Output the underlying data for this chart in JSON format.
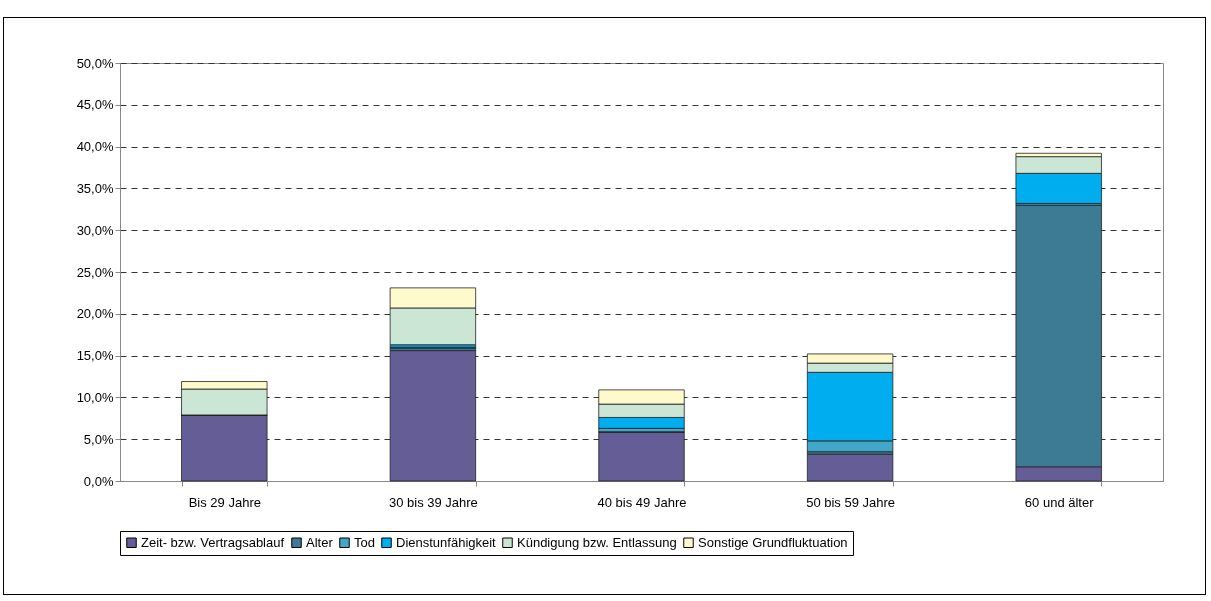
{
  "chart_data": {
    "type": "bar",
    "stacked": true,
    "categories": [
      "Bis 29 Jahre",
      "30 bis 39 Jahre",
      "40 bis 49 Jahre",
      "50 bis 59 Jahre",
      "60 und älter"
    ],
    "series": [
      {
        "name": "Zeit- bzw. Vertragsablauf",
        "color": "#655d96",
        "values": [
          7.9,
          15.6,
          5.8,
          3.2,
          1.7
        ]
      },
      {
        "name": "Alter",
        "color": "#3d7a93",
        "values": [
          0,
          0.3,
          0.1,
          0.3,
          31.3
        ]
      },
      {
        "name": "Tod",
        "color": "#41a6c8",
        "values": [
          0,
          0.1,
          0.4,
          1.3,
          0.2
        ]
      },
      {
        "name": "Dienstunfähigkeit",
        "color": "#00adef",
        "values": [
          0,
          0.3,
          1.3,
          8.2,
          3.6
        ]
      },
      {
        "name": "Kündigung bzw. Entlassung",
        "color": "#cbe6d5",
        "values": [
          3.1,
          4.4,
          1.6,
          1.1,
          2.0
        ]
      },
      {
        "name": "Sonstige Grundfluktuation",
        "color": "#fff9cc",
        "values": [
          0.9,
          2.4,
          1.7,
          1.1,
          0.4
        ]
      }
    ],
    "ylim": [
      0,
      50
    ],
    "yticks": [
      {
        "value": 0,
        "label": "0,0%"
      },
      {
        "value": 5,
        "label": "5,0%"
      },
      {
        "value": 10,
        "label": "10,0%"
      },
      {
        "value": 15,
        "label": "15,0%"
      },
      {
        "value": 20,
        "label": "20,0%"
      },
      {
        "value": 25,
        "label": "25,0%"
      },
      {
        "value": 30,
        "label": "30,0%"
      },
      {
        "value": 35,
        "label": "35,0%"
      },
      {
        "value": 40,
        "label": "40,0%"
      },
      {
        "value": 45,
        "label": "45,0%"
      },
      {
        "value": 50,
        "label": "50,0%"
      }
    ],
    "grid": "y",
    "legend": "bottom"
  }
}
